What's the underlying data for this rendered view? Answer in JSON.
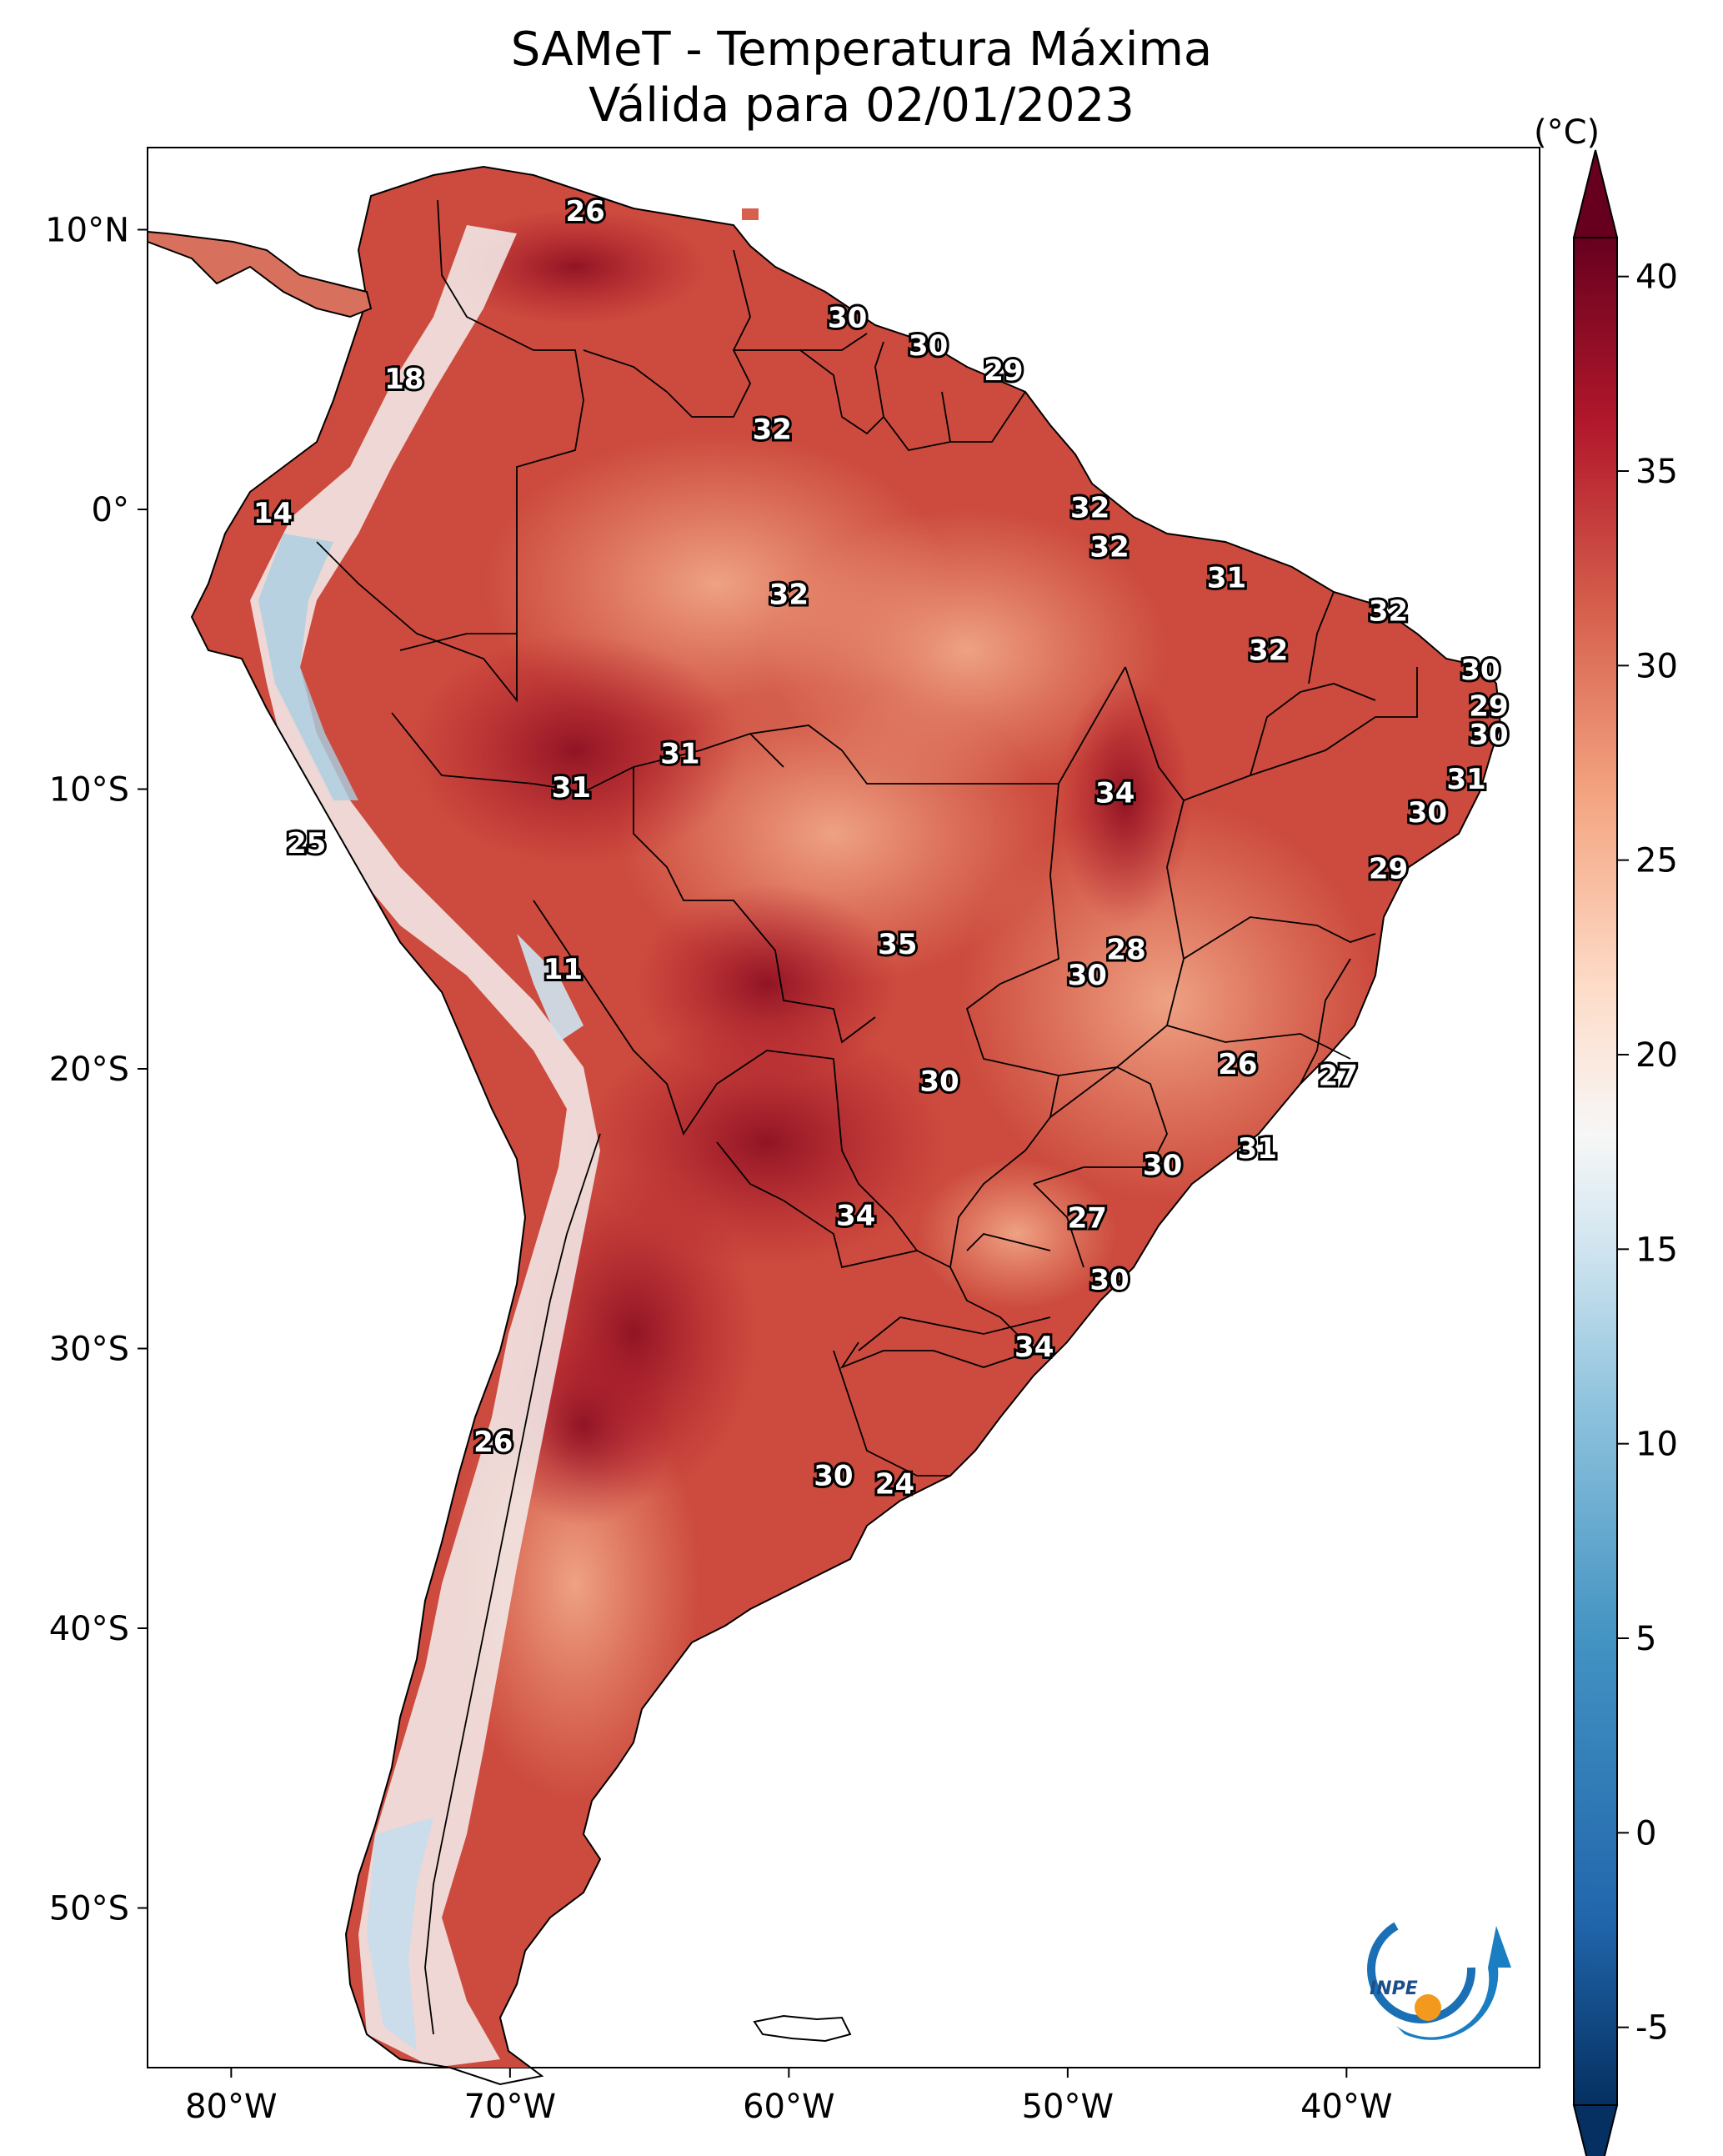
{
  "title": "SAMeT - Temperatura Máxima",
  "subtitle": "Válida para 02/01/2023",
  "colorbar": {
    "unit_label": "(°C)",
    "ticks": [
      "40",
      "35",
      "30",
      "25",
      "20",
      "15",
      "10",
      "5",
      "0",
      "-5"
    ],
    "range": [
      -7,
      41
    ],
    "colors": [
      "#053061",
      "#2166ac",
      "#4393c3",
      "#92c5de",
      "#d1e5f0",
      "#f7f7f7",
      "#fddbc7",
      "#f4a582",
      "#d6604d",
      "#b2182b",
      "#67001f"
    ]
  },
  "axes": {
    "lon_ticks": [
      "80°W",
      "70°W",
      "60°W",
      "50°W",
      "40°W"
    ],
    "lat_ticks": [
      "10°N",
      "0°",
      "10°S",
      "20°S",
      "30°S",
      "40°S",
      "50°S"
    ]
  },
  "logo": {
    "text": "INPE",
    "icon": "inpe-logo-icon"
  },
  "point_labels": [
    {
      "text": "26",
      "lon": -67.3,
      "lat": 10.6
    },
    {
      "text": "18",
      "lon": -73.8,
      "lat": 4.6
    },
    {
      "text": "14",
      "lon": -78.5,
      "lat": -0.2
    },
    {
      "text": "30",
      "lon": -57.9,
      "lat": 6.8
    },
    {
      "text": "30",
      "lon": -55.0,
      "lat": 5.8
    },
    {
      "text": "29",
      "lon": -52.3,
      "lat": 4.9
    },
    {
      "text": "32",
      "lon": -60.6,
      "lat": 2.8
    },
    {
      "text": "32",
      "lon": -49.2,
      "lat": 0.0
    },
    {
      "text": "32",
      "lon": -60.0,
      "lat": -3.1
    },
    {
      "text": "32",
      "lon": -48.5,
      "lat": -1.4
    },
    {
      "text": "31",
      "lon": -44.3,
      "lat": -2.5
    },
    {
      "text": "32",
      "lon": -38.5,
      "lat": -3.7
    },
    {
      "text": "32",
      "lon": -42.8,
      "lat": -5.1
    },
    {
      "text": "30",
      "lon": -35.2,
      "lat": -5.8
    },
    {
      "text": "29",
      "lon": -34.9,
      "lat": -7.1
    },
    {
      "text": "30",
      "lon": -34.9,
      "lat": -8.1
    },
    {
      "text": "31",
      "lon": -35.7,
      "lat": -9.7
    },
    {
      "text": "31",
      "lon": -63.9,
      "lat": -8.8
    },
    {
      "text": "31",
      "lon": -67.8,
      "lat": -10.0
    },
    {
      "text": "34",
      "lon": -48.3,
      "lat": -10.2
    },
    {
      "text": "30",
      "lon": -37.1,
      "lat": -10.9
    },
    {
      "text": "25",
      "lon": -77.3,
      "lat": -12.0
    },
    {
      "text": "29",
      "lon": -38.5,
      "lat": -12.9
    },
    {
      "text": "35",
      "lon": -56.1,
      "lat": -15.6
    },
    {
      "text": "28",
      "lon": -47.9,
      "lat": -15.8
    },
    {
      "text": "11",
      "lon": -68.1,
      "lat": -16.5
    },
    {
      "text": "30",
      "lon": -49.3,
      "lat": -16.7
    },
    {
      "text": "26",
      "lon": -43.9,
      "lat": -19.9
    },
    {
      "text": "27",
      "lon": -40.3,
      "lat": -20.3
    },
    {
      "text": "30",
      "lon": -54.6,
      "lat": -20.5
    },
    {
      "text": "31",
      "lon": -43.2,
      "lat": -22.9
    },
    {
      "text": "30",
      "lon": -46.6,
      "lat": -23.5
    },
    {
      "text": "34",
      "lon": -57.6,
      "lat": -25.3
    },
    {
      "text": "27",
      "lon": -49.3,
      "lat": -25.4
    },
    {
      "text": "30",
      "lon": -48.5,
      "lat": -27.6
    },
    {
      "text": "34",
      "lon": -51.2,
      "lat": -30.0
    },
    {
      "text": "26",
      "lon": -70.6,
      "lat": -33.4
    },
    {
      "text": "30",
      "lon": -58.4,
      "lat": -34.6
    },
    {
      "text": "24",
      "lon": -56.2,
      "lat": -34.9
    }
  ]
}
